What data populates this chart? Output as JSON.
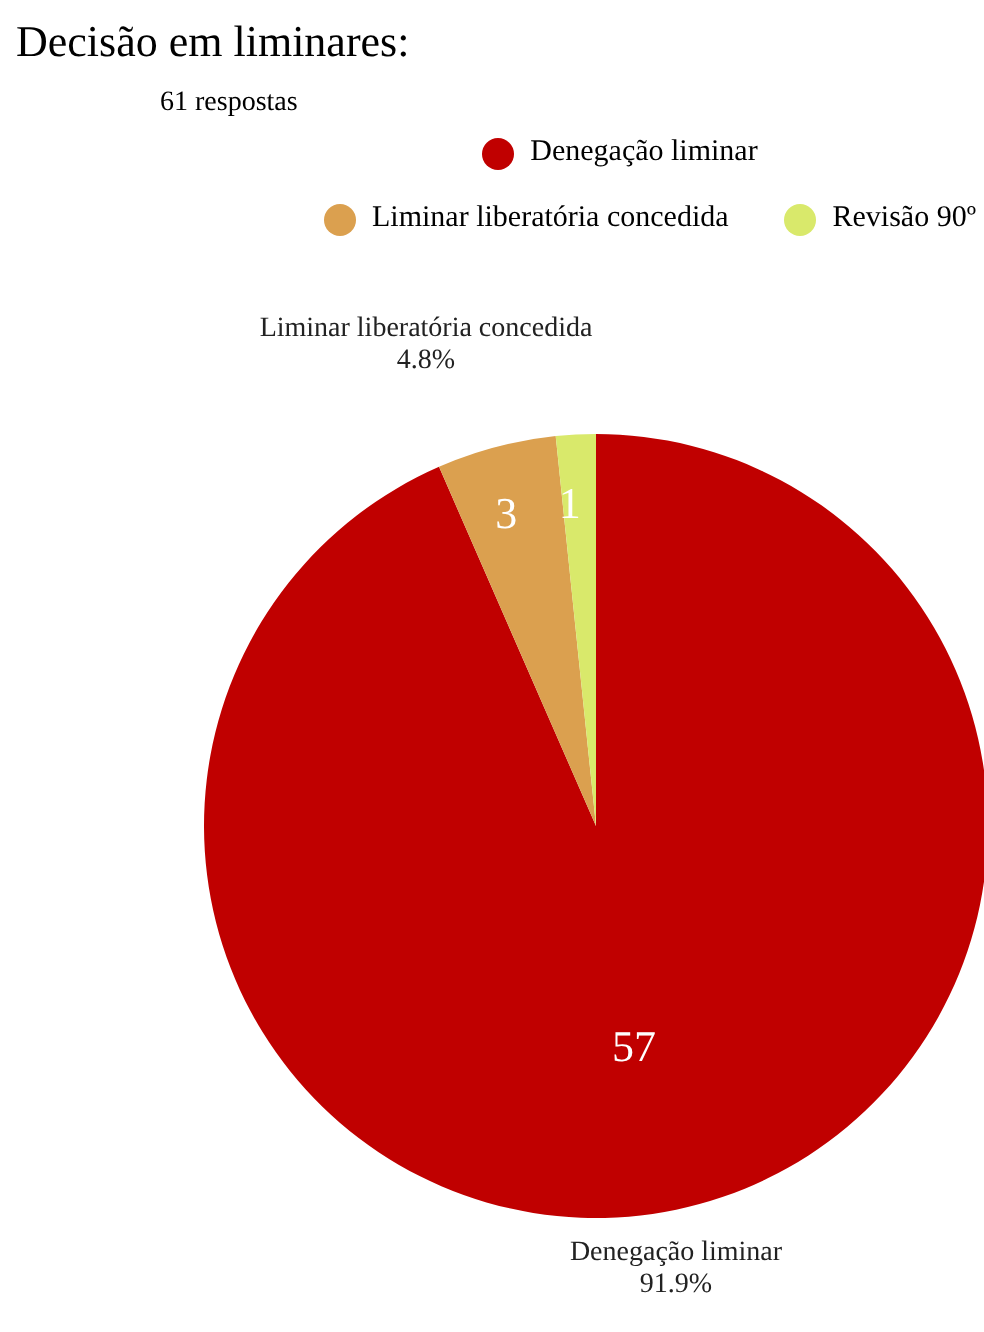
{
  "chart_data": {
    "type": "pie",
    "title": "Decisão em liminares:",
    "subtitle": "61 respostas",
    "categories": [
      "Denegação liminar",
      "Liminar liberatória concedida",
      "Revisão 90º"
    ],
    "values": [
      57,
      3,
      1
    ],
    "colors": [
      "#c00000",
      "#dba04f",
      "#d9e96b"
    ],
    "data_labels": true,
    "legend": "top",
    "annotations": [
      "91.9%",
      "4.8%"
    ]
  }
}
